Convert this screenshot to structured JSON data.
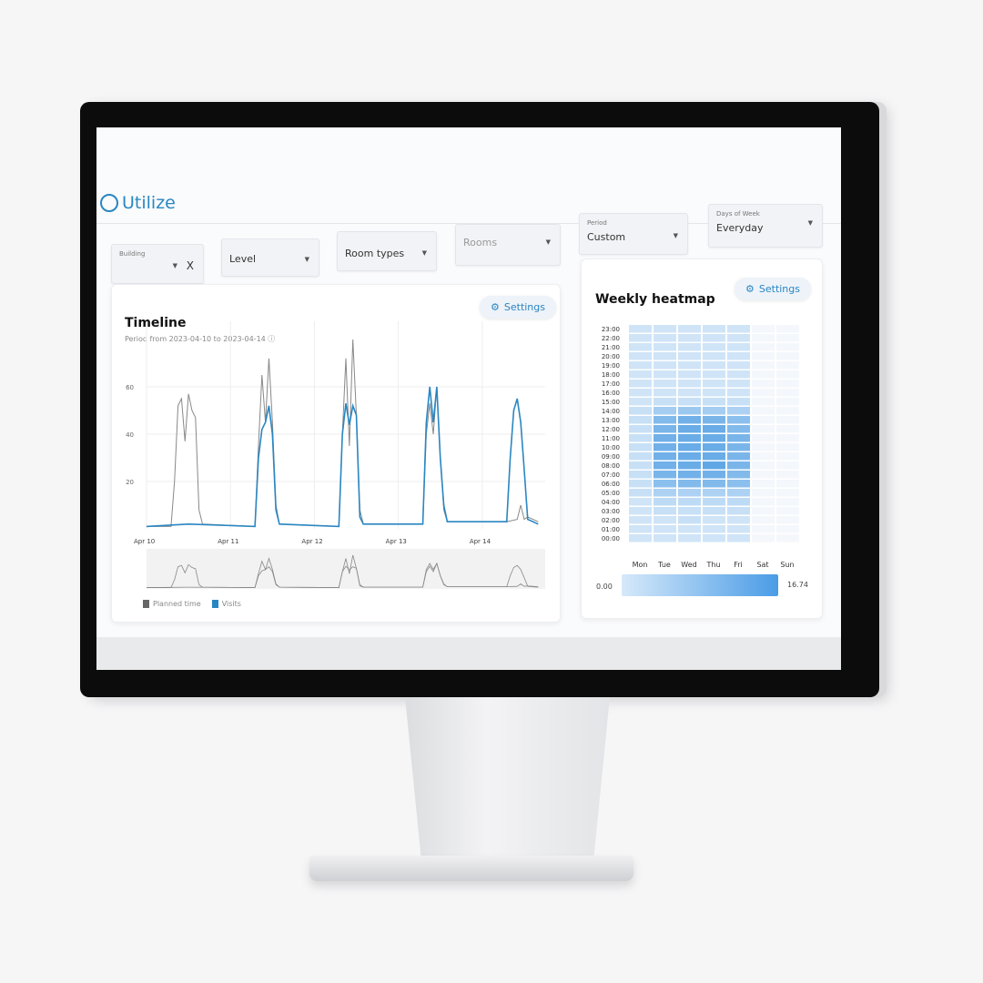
{
  "app": {
    "name": "Utilize"
  },
  "filters": [
    {
      "label": "Building",
      "value": "",
      "clear": "X"
    },
    {
      "label": "",
      "value": "Level"
    },
    {
      "label": "",
      "value": "Room types"
    },
    {
      "label": "",
      "value": "Rooms"
    },
    {
      "label": "Period",
      "value": "Custom"
    },
    {
      "label": "Days of Week",
      "value": "Everyday"
    }
  ],
  "timeline": {
    "title": "Timeline",
    "subtitle": "Period from 2023-04-10 to 2023-04-14",
    "settings": "Settings",
    "legend": [
      "Planned time",
      "Visits"
    ]
  },
  "heatmap": {
    "title": "Weekly heatmap",
    "settings": "Settings",
    "min_label": "0.00",
    "max_label": "16.74"
  },
  "colors": {
    "accent": "#2a86c2",
    "planned": "#888888",
    "visits": "#2a86c2"
  },
  "chart_data": [
    {
      "type": "line",
      "xlabel": "",
      "ylabel": "",
      "yticks": [
        20,
        40,
        60
      ],
      "ylim": [
        0,
        80
      ],
      "xticks": [
        "Apr 10",
        "Apr 11",
        "Apr 12",
        "Apr 13",
        "Apr 14"
      ],
      "series": [
        {
          "name": "Planned time",
          "points": [
            [
              "Apr 10 00:00",
              1
            ],
            [
              "Apr 10 07:00",
              1
            ],
            [
              "Apr 10 08:00",
              20
            ],
            [
              "Apr 10 09:00",
              52
            ],
            [
              "Apr 10 10:00",
              55
            ],
            [
              "Apr 10 11:00",
              37
            ],
            [
              "Apr 10 12:00",
              57
            ],
            [
              "Apr 10 13:00",
              50
            ],
            [
              "Apr 10 14:00",
              47
            ],
            [
              "Apr 10 15:00",
              8
            ],
            [
              "Apr 10 16:00",
              2
            ],
            [
              "Apr 11 07:00",
              1
            ],
            [
              "Apr 11 08:00",
              35
            ],
            [
              "Apr 11 09:00",
              65
            ],
            [
              "Apr 11 10:00",
              45
            ],
            [
              "Apr 11 11:00",
              72
            ],
            [
              "Apr 11 12:00",
              45
            ],
            [
              "Apr 11 13:00",
              10
            ],
            [
              "Apr 11 14:00",
              2
            ],
            [
              "Apr 12 07:00",
              1
            ],
            [
              "Apr 12 08:00",
              40
            ],
            [
              "Apr 12 09:00",
              72
            ],
            [
              "Apr 12 10:00",
              35
            ],
            [
              "Apr 12 11:00",
              80
            ],
            [
              "Apr 12 12:00",
              48
            ],
            [
              "Apr 12 13:00",
              8
            ],
            [
              "Apr 12 14:00",
              2
            ],
            [
              "Apr 13 07:00",
              2
            ],
            [
              "Apr 13 08:00",
              40
            ],
            [
              "Apr 13 09:00",
              53
            ],
            [
              "Apr 13 10:00",
              40
            ],
            [
              "Apr 13 11:00",
              60
            ],
            [
              "Apr 13 12:00",
              30
            ],
            [
              "Apr 13 13:00",
              8
            ],
            [
              "Apr 13 14:00",
              3
            ],
            [
              "Apr 14 07:00",
              3
            ],
            [
              "Apr 14 10:00",
              4
            ],
            [
              "Apr 14 11:00",
              10
            ],
            [
              "Apr 14 12:00",
              4
            ],
            [
              "Apr 14 13:00",
              5
            ],
            [
              "Apr 14 16:00",
              3
            ]
          ]
        },
        {
          "name": "Visits",
          "points": [
            [
              "Apr 10 00:00",
              1
            ],
            [
              "Apr 10 12:00",
              2
            ],
            [
              "Apr 11 07:00",
              1
            ],
            [
              "Apr 11 08:00",
              30
            ],
            [
              "Apr 11 09:00",
              42
            ],
            [
              "Apr 11 10:00",
              45
            ],
            [
              "Apr 11 11:00",
              52
            ],
            [
              "Apr 11 12:00",
              40
            ],
            [
              "Apr 11 13:00",
              8
            ],
            [
              "Apr 11 14:00",
              2
            ],
            [
              "Apr 12 07:00",
              1
            ],
            [
              "Apr 12 08:00",
              40
            ],
            [
              "Apr 12 09:00",
              53
            ],
            [
              "Apr 12 10:00",
              44
            ],
            [
              "Apr 12 11:00",
              52
            ],
            [
              "Apr 12 12:00",
              48
            ],
            [
              "Apr 12 13:00",
              5
            ],
            [
              "Apr 12 14:00",
              2
            ],
            [
              "Apr 13 07:00",
              2
            ],
            [
              "Apr 13 08:00",
              45
            ],
            [
              "Apr 13 09:00",
              60
            ],
            [
              "Apr 13 10:00",
              45
            ],
            [
              "Apr 13 11:00",
              60
            ],
            [
              "Apr 13 12:00",
              30
            ],
            [
              "Apr 13 13:00",
              10
            ],
            [
              "Apr 13 14:00",
              3
            ],
            [
              "Apr 14 07:00",
              3
            ],
            [
              "Apr 14 08:00",
              30
            ],
            [
              "Apr 14 09:00",
              50
            ],
            [
              "Apr 14 10:00",
              55
            ],
            [
              "Apr 14 11:00",
              45
            ],
            [
              "Apr 14 12:00",
              25
            ],
            [
              "Apr 14 13:00",
              4
            ],
            [
              "Apr 14 16:00",
              2
            ]
          ]
        }
      ]
    },
    {
      "type": "heatmap",
      "x": [
        "Mon",
        "Tue",
        "Wed",
        "Thu",
        "Fri",
        "Sat",
        "Sun"
      ],
      "y": [
        "23:00",
        "22:00",
        "21:00",
        "20:00",
        "19:00",
        "18:00",
        "17:00",
        "16:00",
        "15:00",
        "14:00",
        "13:00",
        "12:00",
        "11:00",
        "10:00",
        "09:00",
        "08:00",
        "07:00",
        "06:00",
        "05:00",
        "04:00",
        "03:00",
        "02:00",
        "01:00",
        "00:00"
      ],
      "range": [
        0,
        16.74
      ],
      "values": [
        [
          3,
          3,
          3,
          3,
          3,
          4,
          4,
          4,
          4,
          4,
          4,
          4,
          4,
          4,
          4,
          3,
          3,
          3,
          3,
          3,
          3,
          3,
          3,
          3
        ],
        [
          3,
          3,
          3,
          4,
          5,
          7,
          11,
          13,
          14,
          14,
          14,
          14,
          13,
          12,
          8,
          4,
          3,
          3,
          3,
          3,
          3,
          3,
          3,
          3
        ],
        [
          3,
          3,
          4,
          4,
          5,
          7,
          12,
          14,
          15,
          15,
          15,
          15,
          15,
          14,
          9,
          4,
          3,
          3,
          3,
          3,
          3,
          3,
          3,
          3
        ],
        [
          3,
          3,
          3,
          4,
          5,
          7,
          12,
          14,
          16,
          15,
          15,
          15,
          15,
          13,
          8,
          4,
          3,
          3,
          3,
          3,
          3,
          3,
          3,
          3
        ],
        [
          3,
          3,
          3,
          4,
          5,
          7,
          11,
          12,
          13,
          13,
          13,
          13,
          12,
          11,
          7,
          4,
          3,
          3,
          3,
          3,
          3,
          3,
          3,
          3
        ],
        [
          0.5,
          0.5,
          0.5,
          0.5,
          0.5,
          0.5,
          0.5,
          0.5,
          0.5,
          0.5,
          0.5,
          0.5,
          0.5,
          0.5,
          0.5,
          0.5,
          0.5,
          0.5,
          0.5,
          0.5,
          0.5,
          0.5,
          0.5,
          0.5
        ],
        [
          0.5,
          0.5,
          0.5,
          0.5,
          0.5,
          0.5,
          0.5,
          0.5,
          0.5,
          0.5,
          0.5,
          0.5,
          0.5,
          0.5,
          0.5,
          0.5,
          0.5,
          0.5,
          0.5,
          0.5,
          0.5,
          0.5,
          0.5,
          0.5
        ]
      ]
    }
  ]
}
